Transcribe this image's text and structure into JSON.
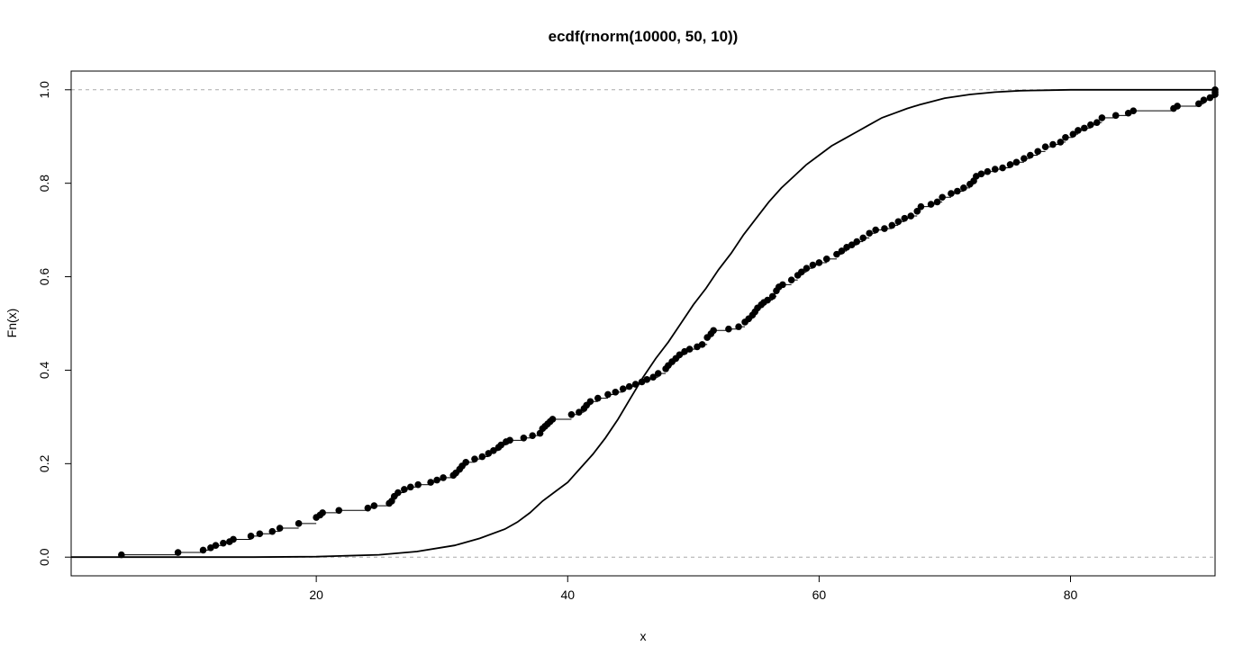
{
  "chart_data": {
    "type": "line",
    "title": "ecdf(rnorm(10000, 50, 10))",
    "xlabel": "x",
    "ylabel": "Fn(x)",
    "xlim": [
      0.5,
      91.5
    ],
    "ylim": [
      -0.04,
      1.04
    ],
    "x_ticks": [
      20,
      40,
      60,
      80
    ],
    "y_ticks": [
      0.0,
      0.2,
      0.4,
      0.6,
      0.8,
      1.0
    ],
    "x_tick_labels": [
      "20",
      "40",
      "60",
      "80"
    ],
    "y_tick_labels": [
      "0.0",
      "0.2",
      "0.4",
      "0.6",
      "0.8",
      "1.0"
    ],
    "reference_lines_y": [
      0,
      1
    ],
    "grid": false,
    "legend": "none",
    "series": [
      {
        "kind": "step-points",
        "points": [
          [
            4.5,
            0.005
          ],
          [
            9.0,
            0.01
          ],
          [
            11.0,
            0.015
          ],
          [
            11.6,
            0.02
          ],
          [
            12.0,
            0.025
          ],
          [
            12.6,
            0.03
          ],
          [
            13.1,
            0.033
          ],
          [
            13.4,
            0.038
          ],
          [
            14.8,
            0.045
          ],
          [
            15.5,
            0.05
          ],
          [
            16.5,
            0.055
          ],
          [
            17.1,
            0.062
          ],
          [
            18.6,
            0.072
          ],
          [
            20.0,
            0.085
          ],
          [
            20.3,
            0.09
          ],
          [
            20.5,
            0.095
          ],
          [
            21.8,
            0.1
          ],
          [
            24.1,
            0.105
          ],
          [
            24.6,
            0.11
          ],
          [
            25.8,
            0.115
          ],
          [
            26.0,
            0.12
          ],
          [
            26.2,
            0.13
          ],
          [
            26.5,
            0.138
          ],
          [
            27.0,
            0.145
          ],
          [
            27.5,
            0.15
          ],
          [
            28.1,
            0.155
          ],
          [
            29.1,
            0.16
          ],
          [
            29.6,
            0.165
          ],
          [
            30.1,
            0.17
          ],
          [
            30.9,
            0.175
          ],
          [
            31.1,
            0.18
          ],
          [
            31.4,
            0.188
          ],
          [
            31.6,
            0.195
          ],
          [
            31.9,
            0.203
          ],
          [
            32.6,
            0.21
          ],
          [
            33.2,
            0.215
          ],
          [
            33.7,
            0.222
          ],
          [
            34.1,
            0.228
          ],
          [
            34.5,
            0.235
          ],
          [
            34.7,
            0.24
          ],
          [
            35.1,
            0.247
          ],
          [
            35.4,
            0.25
          ],
          [
            36.5,
            0.255
          ],
          [
            37.2,
            0.26
          ],
          [
            37.8,
            0.265
          ],
          [
            38.0,
            0.275
          ],
          [
            38.2,
            0.28
          ],
          [
            38.4,
            0.285
          ],
          [
            38.6,
            0.29
          ],
          [
            38.8,
            0.295
          ],
          [
            40.3,
            0.305
          ],
          [
            40.9,
            0.31
          ],
          [
            41.3,
            0.318
          ],
          [
            41.5,
            0.325
          ],
          [
            41.8,
            0.333
          ],
          [
            42.4,
            0.34
          ],
          [
            43.2,
            0.348
          ],
          [
            43.8,
            0.353
          ],
          [
            44.4,
            0.36
          ],
          [
            44.9,
            0.365
          ],
          [
            45.4,
            0.37
          ],
          [
            45.9,
            0.375
          ],
          [
            46.3,
            0.38
          ],
          [
            46.8,
            0.385
          ],
          [
            47.2,
            0.393
          ],
          [
            47.8,
            0.403
          ],
          [
            48.0,
            0.41
          ],
          [
            48.3,
            0.418
          ],
          [
            48.6,
            0.425
          ],
          [
            48.9,
            0.433
          ],
          [
            49.3,
            0.44
          ],
          [
            49.7,
            0.445
          ],
          [
            50.3,
            0.45
          ],
          [
            50.7,
            0.455
          ],
          [
            51.1,
            0.47
          ],
          [
            51.4,
            0.478
          ],
          [
            51.6,
            0.485
          ],
          [
            52.8,
            0.488
          ],
          [
            53.6,
            0.493
          ],
          [
            54.1,
            0.503
          ],
          [
            54.4,
            0.51
          ],
          [
            54.7,
            0.518
          ],
          [
            54.9,
            0.525
          ],
          [
            55.1,
            0.533
          ],
          [
            55.4,
            0.54
          ],
          [
            55.6,
            0.545
          ],
          [
            55.9,
            0.55
          ],
          [
            56.3,
            0.558
          ],
          [
            56.6,
            0.57
          ],
          [
            56.8,
            0.578
          ],
          [
            57.1,
            0.583
          ],
          [
            57.8,
            0.593
          ],
          [
            58.3,
            0.603
          ],
          [
            58.6,
            0.61
          ],
          [
            59.0,
            0.618
          ],
          [
            59.5,
            0.625
          ],
          [
            60.0,
            0.63
          ],
          [
            60.6,
            0.638
          ],
          [
            61.4,
            0.648
          ],
          [
            61.8,
            0.655
          ],
          [
            62.2,
            0.663
          ],
          [
            62.6,
            0.668
          ],
          [
            63.0,
            0.675
          ],
          [
            63.5,
            0.683
          ],
          [
            64.0,
            0.693
          ],
          [
            64.5,
            0.7
          ],
          [
            65.2,
            0.703
          ],
          [
            65.8,
            0.71
          ],
          [
            66.3,
            0.718
          ],
          [
            66.8,
            0.725
          ],
          [
            67.3,
            0.73
          ],
          [
            67.8,
            0.74
          ],
          [
            68.1,
            0.75
          ],
          [
            68.9,
            0.755
          ],
          [
            69.4,
            0.76
          ],
          [
            69.8,
            0.77
          ],
          [
            70.5,
            0.778
          ],
          [
            71.0,
            0.783
          ],
          [
            71.5,
            0.79
          ],
          [
            72.0,
            0.798
          ],
          [
            72.3,
            0.805
          ],
          [
            72.5,
            0.815
          ],
          [
            72.9,
            0.82
          ],
          [
            73.4,
            0.825
          ],
          [
            74.0,
            0.83
          ],
          [
            74.6,
            0.833
          ],
          [
            75.2,
            0.84
          ],
          [
            75.7,
            0.845
          ],
          [
            76.3,
            0.853
          ],
          [
            76.8,
            0.86
          ],
          [
            77.4,
            0.868
          ],
          [
            78.0,
            0.878
          ],
          [
            78.6,
            0.883
          ],
          [
            79.2,
            0.888
          ],
          [
            79.6,
            0.898
          ],
          [
            80.2,
            0.905
          ],
          [
            80.6,
            0.913
          ],
          [
            81.1,
            0.918
          ],
          [
            81.6,
            0.925
          ],
          [
            82.1,
            0.93
          ],
          [
            82.5,
            0.94
          ],
          [
            83.6,
            0.945
          ],
          [
            84.6,
            0.95
          ],
          [
            85.0,
            0.955
          ],
          [
            88.2,
            0.96
          ],
          [
            88.5,
            0.965
          ],
          [
            90.2,
            0.97
          ],
          [
            90.6,
            0.978
          ],
          [
            91.1,
            0.983
          ],
          [
            91.9,
            0.99
          ],
          [
            92.9,
            0.995
          ],
          [
            93.6,
            1.0
          ]
        ]
      },
      {
        "kind": "curve",
        "x": [
          0.5,
          10,
          15,
          20,
          25,
          28,
          31,
          33,
          35,
          36,
          37,
          38,
          39,
          40,
          41,
          42,
          43,
          44,
          45,
          46,
          47,
          48,
          49,
          50,
          51,
          52,
          53,
          54,
          55,
          56,
          57,
          58,
          59,
          60,
          61,
          62,
          63,
          64,
          65,
          66,
          67,
          68,
          69,
          70,
          72,
          74,
          76,
          78,
          80,
          83,
          86,
          88,
          91.5
        ],
        "y": [
          0.0,
          0.0,
          0.0,
          0.001,
          0.005,
          0.012,
          0.025,
          0.04,
          0.06,
          0.075,
          0.095,
          0.12,
          0.14,
          0.16,
          0.19,
          0.22,
          0.255,
          0.295,
          0.34,
          0.385,
          0.425,
          0.46,
          0.5,
          0.54,
          0.575,
          0.615,
          0.65,
          0.69,
          0.725,
          0.76,
          0.79,
          0.815,
          0.84,
          0.86,
          0.88,
          0.895,
          0.91,
          0.925,
          0.94,
          0.95,
          0.96,
          0.968,
          0.975,
          0.982,
          0.99,
          0.995,
          0.998,
          0.999,
          1.0,
          1.0,
          1.0,
          1.0,
          1.0
        ]
      }
    ]
  }
}
